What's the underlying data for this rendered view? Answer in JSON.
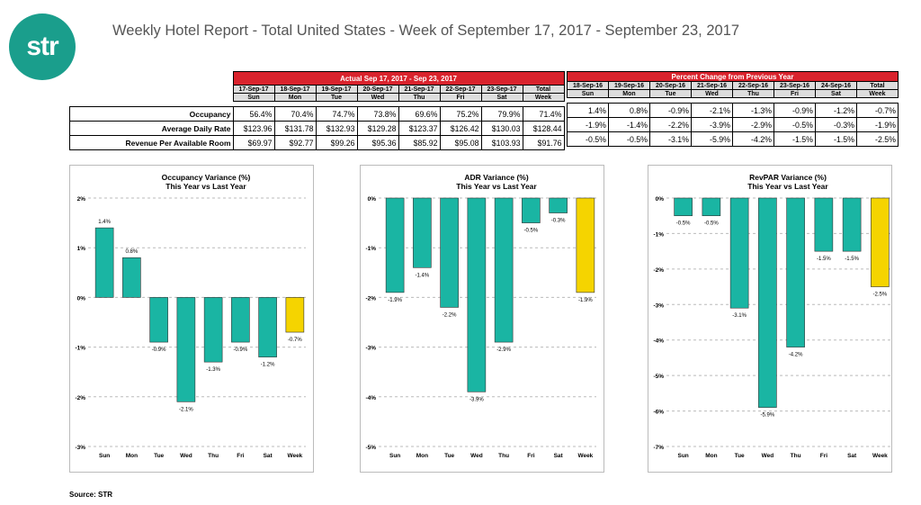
{
  "logo": "str",
  "title": "Weekly Hotel Report - Total United States - Week of September 17, 2017 - September 23, 2017",
  "table": {
    "actual_header": "Actual Sep 17, 2017 - Sep 23, 2017",
    "change_header": "Percent Change from Previous Year",
    "actual_dates": [
      "17-Sep-17",
      "18-Sep-17",
      "19-Sep-17",
      "20-Sep-17",
      "21-Sep-17",
      "22-Sep-17",
      "23-Sep-17",
      "Total"
    ],
    "change_dates": [
      "18-Sep-16",
      "19-Sep-16",
      "20-Sep-16",
      "21-Sep-16",
      "22-Sep-16",
      "23-Sep-16",
      "24-Sep-16",
      "Total"
    ],
    "days": [
      "Sun",
      "Mon",
      "Tue",
      "Wed",
      "Thu",
      "Fri",
      "Sat",
      "Week"
    ],
    "rows": [
      {
        "label": "Occupancy",
        "actual": [
          "56.4%",
          "70.4%",
          "74.7%",
          "73.8%",
          "69.6%",
          "75.2%",
          "79.9%",
          "71.4%"
        ],
        "change": [
          "1.4%",
          "0.8%",
          "-0.9%",
          "-2.1%",
          "-1.3%",
          "-0.9%",
          "-1.2%",
          "-0.7%"
        ]
      },
      {
        "label": "Average Daily Rate",
        "actual": [
          "$123.96",
          "$131.78",
          "$132.93",
          "$129.28",
          "$123.37",
          "$126.42",
          "$130.03",
          "$128.44"
        ],
        "change": [
          "-1.9%",
          "-1.4%",
          "-2.2%",
          "-3.9%",
          "-2.9%",
          "-0.5%",
          "-0.3%",
          "-1.9%"
        ]
      },
      {
        "label": "Revenue Per Available Room",
        "actual": [
          "$69.97",
          "$92.77",
          "$99.26",
          "$95.36",
          "$85.92",
          "$95.08",
          "$103.93",
          "$91.76"
        ],
        "change": [
          "-0.5%",
          "-0.5%",
          "-3.1%",
          "-5.9%",
          "-4.2%",
          "-1.5%",
          "-1.5%",
          "-2.5%"
        ]
      }
    ]
  },
  "colors": {
    "bar": "#1ab5a3",
    "week_bar": "#f5d400",
    "header": "#d9232d",
    "logo": "#1a9e8c"
  },
  "chart_data": [
    {
      "type": "bar",
      "title": "Occupancy Variance (%)",
      "subtitle": "This Year vs Last Year",
      "categories": [
        "Sun",
        "Mon",
        "Tue",
        "Wed",
        "Thu",
        "Fri",
        "Sat",
        "Week"
      ],
      "values": [
        1.4,
        0.8,
        -0.9,
        -2.1,
        -1.3,
        -0.9,
        -1.2,
        -0.7
      ],
      "ylim": [
        -3,
        2
      ],
      "yticks": [
        "2%",
        "1%",
        "0%",
        "-1%",
        "-2%",
        "-3%"
      ],
      "grid": true
    },
    {
      "type": "bar",
      "title": "ADR Variance (%)",
      "subtitle": "This Year vs Last Year",
      "categories": [
        "Sun",
        "Mon",
        "Tue",
        "Wed",
        "Thu",
        "Fri",
        "Sat",
        "Week"
      ],
      "values": [
        -1.9,
        -1.4,
        -2.2,
        -3.9,
        -2.9,
        -0.5,
        -0.3,
        -1.9
      ],
      "ylim": [
        -5,
        0
      ],
      "yticks": [
        "0%",
        "-1%",
        "-2%",
        "-3%",
        "-4%",
        "-5%"
      ],
      "grid": true
    },
    {
      "type": "bar",
      "title": "RevPAR Variance (%)",
      "subtitle": "This Year vs Last Year",
      "categories": [
        "Sun",
        "Mon",
        "Tue",
        "Wed",
        "Thu",
        "Fri",
        "Sat",
        "Week"
      ],
      "values": [
        -0.5,
        -0.5,
        -3.1,
        -5.9,
        -4.2,
        -1.5,
        -1.5,
        -2.5
      ],
      "ylim": [
        -7,
        0
      ],
      "yticks": [
        "0%",
        "-1%",
        "-2%",
        "-3%",
        "-4%",
        "-5%",
        "-6%",
        "-7%"
      ],
      "grid": true
    }
  ],
  "source": "Source: STR"
}
